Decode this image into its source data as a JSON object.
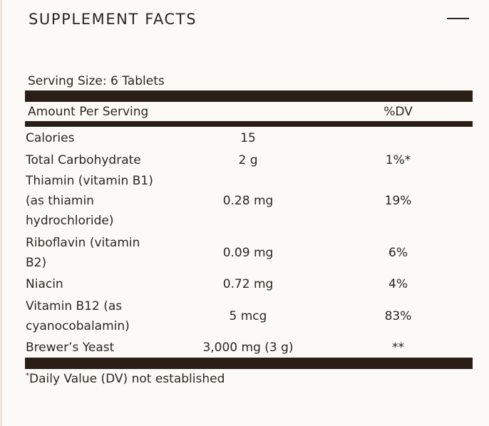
{
  "panel": {
    "title": "SUPPLEMENT FACTS",
    "collapse_icon": "minus-icon",
    "serving_size": "Serving Size: 6 Tablets",
    "header": {
      "amount_per_serving": "Amount Per Serving",
      "dv": "%DV"
    },
    "rows": [
      {
        "name": [
          "Calories"
        ],
        "amount": "15",
        "dv": ""
      },
      {
        "name": [
          "Total Carbohydrate"
        ],
        "amount": "2 g",
        "dv": "1%*"
      },
      {
        "name": [
          "Thiamin (vitamin B1)",
          "(as thiamin",
          "hydrochloride)"
        ],
        "amount": "0.28 mg",
        "dv": "19%"
      },
      {
        "name": [
          "Riboflavin (vitamin",
          "B2)"
        ],
        "amount": "0.09 mg",
        "dv": "6%"
      },
      {
        "name": [
          "Niacin"
        ],
        "amount": "0.72 mg",
        "dv": "4%"
      },
      {
        "name": [
          "Vitamin B12 (as",
          "cyanocobalamin)"
        ],
        "amount": "5 mcg",
        "dv": "83%"
      },
      {
        "name": [
          "Brewer’s Yeast"
        ],
        "amount": "3,000 mg (3 g)",
        "dv": "**"
      }
    ],
    "footnote": {
      "marker": "*",
      "text": "Daily Value (DV) not established"
    }
  }
}
